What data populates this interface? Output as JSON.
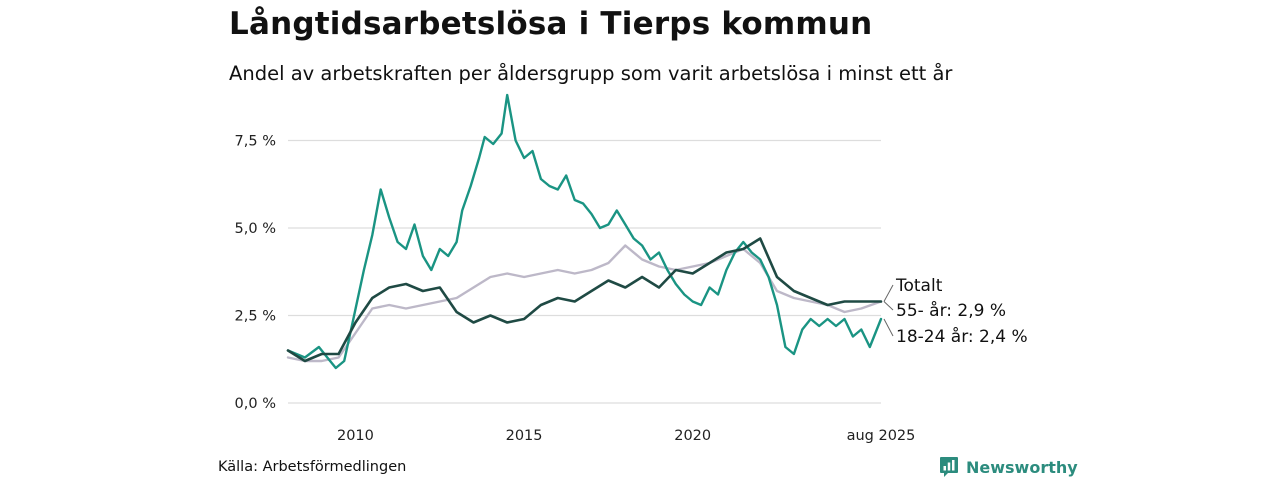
{
  "header": {
    "title": "Långtidsarbetslösa i Tierps kommun",
    "subtitle": "Andel av arbetskraften per åldersgrupp som varit arbetslösa i minst ett år"
  },
  "footer": {
    "source": "Källa: Arbetsförmedlingen",
    "brand": "Newsworthy",
    "brand_icon": "newsworthy-chart-logo-icon"
  },
  "colors": {
    "youth": "#1a9483",
    "senior": "#bdb8c8",
    "total": "#1f4a44",
    "grid": "#dddddd",
    "brand": "#2c8c7e"
  },
  "chart_data": {
    "type": "line",
    "title": "Långtidsarbetslösa i Tierps kommun",
    "subtitle": "Andel av arbetskraften per åldersgrupp som varit arbetslösa i minst ett år",
    "xlabel": "",
    "ylabel": "",
    "xlim": [
      "2008-01",
      "2025-08"
    ],
    "ylim": [
      0,
      9
    ],
    "y_ticks": [
      0,
      2.5,
      5.0,
      7.5
    ],
    "y_tick_labels": [
      "0,0 %",
      "2,5 %",
      "5,0 %",
      "7,5 %"
    ],
    "x_ticks": [
      "2010-01",
      "2015-01",
      "2020-01",
      "2025-08"
    ],
    "x_tick_labels": [
      "2010",
      "2015",
      "2020",
      "aug 2025"
    ],
    "grid": "horizontal",
    "legend": "direct labels at line ends",
    "series": [
      {
        "name": "18-24 år",
        "end_label": "18-24 år: 2,4 %",
        "color": "#1a9483",
        "points": [
          [
            "2008-01",
            1.5
          ],
          [
            "2008-07",
            1.3
          ],
          [
            "2008-12",
            1.6
          ],
          [
            "2009-03",
            1.3
          ],
          [
            "2009-06",
            1.0
          ],
          [
            "2009-09",
            1.2
          ],
          [
            "2009-12",
            2.3
          ],
          [
            "2010-04",
            3.8
          ],
          [
            "2010-07",
            4.8
          ],
          [
            "2010-10",
            6.1
          ],
          [
            "2011-01",
            5.3
          ],
          [
            "2011-04",
            4.6
          ],
          [
            "2011-07",
            4.4
          ],
          [
            "2011-10",
            5.1
          ],
          [
            "2012-01",
            4.2
          ],
          [
            "2012-04",
            3.8
          ],
          [
            "2012-07",
            4.4
          ],
          [
            "2012-10",
            4.2
          ],
          [
            "2013-01",
            4.6
          ],
          [
            "2013-03",
            5.5
          ],
          [
            "2013-06",
            6.2
          ],
          [
            "2013-09",
            7.0
          ],
          [
            "2013-11",
            7.6
          ],
          [
            "2014-02",
            7.4
          ],
          [
            "2014-05",
            7.7
          ],
          [
            "2014-07",
            8.8
          ],
          [
            "2014-10",
            7.5
          ],
          [
            "2015-01",
            7.0
          ],
          [
            "2015-04",
            7.2
          ],
          [
            "2015-07",
            6.4
          ],
          [
            "2015-10",
            6.2
          ],
          [
            "2016-01",
            6.1
          ],
          [
            "2016-04",
            6.5
          ],
          [
            "2016-07",
            5.8
          ],
          [
            "2016-10",
            5.7
          ],
          [
            "2017-01",
            5.4
          ],
          [
            "2017-04",
            5.0
          ],
          [
            "2017-07",
            5.1
          ],
          [
            "2017-10",
            5.5
          ],
          [
            "2018-01",
            5.1
          ],
          [
            "2018-04",
            4.7
          ],
          [
            "2018-07",
            4.5
          ],
          [
            "2018-10",
            4.1
          ],
          [
            "2019-01",
            4.3
          ],
          [
            "2019-04",
            3.8
          ],
          [
            "2019-07",
            3.4
          ],
          [
            "2019-10",
            3.1
          ],
          [
            "2020-01",
            2.9
          ],
          [
            "2020-04",
            2.8
          ],
          [
            "2020-07",
            3.3
          ],
          [
            "2020-10",
            3.1
          ],
          [
            "2021-01",
            3.8
          ],
          [
            "2021-04",
            4.3
          ],
          [
            "2021-07",
            4.6
          ],
          [
            "2021-10",
            4.3
          ],
          [
            "2022-01",
            4.1
          ],
          [
            "2022-04",
            3.6
          ],
          [
            "2022-07",
            2.8
          ],
          [
            "2022-10",
            1.6
          ],
          [
            "2023-01",
            1.4
          ],
          [
            "2023-04",
            2.1
          ],
          [
            "2023-07",
            2.4
          ],
          [
            "2023-10",
            2.2
          ],
          [
            "2024-01",
            2.4
          ],
          [
            "2024-04",
            2.2
          ],
          [
            "2024-07",
            2.4
          ],
          [
            "2024-10",
            1.9
          ],
          [
            "2025-01",
            2.1
          ],
          [
            "2025-04",
            1.6
          ],
          [
            "2025-06",
            2.0
          ],
          [
            "2025-08",
            2.4
          ]
        ]
      },
      {
        "name": "55- år",
        "end_label": "55- år: 2,9 %",
        "color": "#bdb8c8",
        "points": [
          [
            "2008-01",
            1.3
          ],
          [
            "2008-07",
            1.2
          ],
          [
            "2009-01",
            1.2
          ],
          [
            "2009-07",
            1.3
          ],
          [
            "2010-01",
            2.0
          ],
          [
            "2010-07",
            2.7
          ],
          [
            "2011-01",
            2.8
          ],
          [
            "2011-07",
            2.7
          ],
          [
            "2012-01",
            2.8
          ],
          [
            "2012-07",
            2.9
          ],
          [
            "2013-01",
            3.0
          ],
          [
            "2013-07",
            3.3
          ],
          [
            "2014-01",
            3.6
          ],
          [
            "2014-07",
            3.7
          ],
          [
            "2015-01",
            3.6
          ],
          [
            "2015-07",
            3.7
          ],
          [
            "2016-01",
            3.8
          ],
          [
            "2016-07",
            3.7
          ],
          [
            "2017-01",
            3.8
          ],
          [
            "2017-07",
            4.0
          ],
          [
            "2018-01",
            4.5
          ],
          [
            "2018-07",
            4.1
          ],
          [
            "2019-01",
            3.9
          ],
          [
            "2019-07",
            3.8
          ],
          [
            "2020-01",
            3.9
          ],
          [
            "2020-07",
            4.0
          ],
          [
            "2021-01",
            4.2
          ],
          [
            "2021-07",
            4.4
          ],
          [
            "2022-01",
            4.0
          ],
          [
            "2022-07",
            3.2
          ],
          [
            "2023-01",
            3.0
          ],
          [
            "2023-07",
            2.9
          ],
          [
            "2024-01",
            2.8
          ],
          [
            "2024-07",
            2.6
          ],
          [
            "2025-01",
            2.7
          ],
          [
            "2025-08",
            2.9
          ]
        ]
      },
      {
        "name": "Totalt",
        "end_label": "Totalt",
        "color": "#1f4a44",
        "points": [
          [
            "2008-01",
            1.5
          ],
          [
            "2008-07",
            1.2
          ],
          [
            "2009-01",
            1.4
          ],
          [
            "2009-07",
            1.4
          ],
          [
            "2010-01",
            2.3
          ],
          [
            "2010-07",
            3.0
          ],
          [
            "2011-01",
            3.3
          ],
          [
            "2011-07",
            3.4
          ],
          [
            "2012-01",
            3.2
          ],
          [
            "2012-07",
            3.3
          ],
          [
            "2013-01",
            2.6
          ],
          [
            "2013-07",
            2.3
          ],
          [
            "2014-01",
            2.5
          ],
          [
            "2014-07",
            2.3
          ],
          [
            "2015-01",
            2.4
          ],
          [
            "2015-07",
            2.8
          ],
          [
            "2016-01",
            3.0
          ],
          [
            "2016-07",
            2.9
          ],
          [
            "2017-01",
            3.2
          ],
          [
            "2017-07",
            3.5
          ],
          [
            "2018-01",
            3.3
          ],
          [
            "2018-07",
            3.6
          ],
          [
            "2019-01",
            3.3
          ],
          [
            "2019-07",
            3.8
          ],
          [
            "2020-01",
            3.7
          ],
          [
            "2020-07",
            4.0
          ],
          [
            "2021-01",
            4.3
          ],
          [
            "2021-07",
            4.4
          ],
          [
            "2022-01",
            4.7
          ],
          [
            "2022-07",
            3.6
          ],
          [
            "2023-01",
            3.2
          ],
          [
            "2023-07",
            3.0
          ],
          [
            "2024-01",
            2.8
          ],
          [
            "2024-07",
            2.9
          ],
          [
            "2025-01",
            2.9
          ],
          [
            "2025-08",
            2.9
          ]
        ]
      }
    ]
  }
}
